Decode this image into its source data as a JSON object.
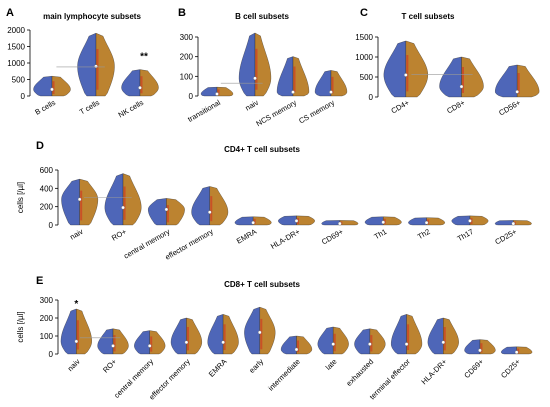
{
  "colors": {
    "left_half": "#3b55b0",
    "right_half": "#b5761a",
    "accent_red": "#d2301f",
    "median_line": "#999999"
  },
  "chart_data": [
    {
      "panel": "A",
      "title": "main lymphocyte subsets",
      "type": "violin",
      "ylabel": "",
      "ylim": [
        0,
        2000
      ],
      "yticks": [
        0,
        500,
        1000,
        1500,
        2000
      ],
      "categories": [
        "B cells",
        "T cells",
        "NK cells"
      ],
      "medians": [
        200,
        900,
        250
      ],
      "top": [
        600,
        1900,
        800
      ],
      "significance": [
        {
          "category": "NK cells",
          "text": "**"
        }
      ],
      "reference_line": 880
    },
    {
      "panel": "B",
      "title": "B cell subsets",
      "type": "violin",
      "ylabel": "",
      "ylim": [
        0,
        300
      ],
      "yticks": [
        0,
        100,
        200,
        300
      ],
      "categories": [
        "transitional",
        "naiv",
        "NCS memory",
        "CS memory"
      ],
      "medians": [
        10,
        90,
        20,
        20
      ],
      "top": [
        45,
        320,
        200,
        130
      ],
      "significance": [],
      "reference_line": 65
    },
    {
      "panel": "C",
      "title": "T cell subsets",
      "type": "violin",
      "ylabel": "",
      "ylim": [
        0,
        1500
      ],
      "yticks": [
        0,
        500,
        1000,
        1500
      ],
      "categories": [
        "CD4+",
        "CD8+",
        "CD56+"
      ],
      "medians": [
        550,
        260,
        130
      ],
      "top": [
        1400,
        1000,
        800
      ],
      "significance": [],
      "reference_line": 560
    },
    {
      "panel": "D",
      "title": "CD4+ T cell subsets",
      "type": "violin",
      "ylabel": "cells [/µl]",
      "ylim": [
        0,
        600
      ],
      "yticks": [
        0,
        200,
        400,
        600
      ],
      "categories": [
        "naiv",
        "RO+",
        "central memory",
        "effector memory",
        "EMRA",
        "HLA-DR+",
        "CD69+",
        "Th1",
        "Th2",
        "Th17",
        "CD25+"
      ],
      "medians": [
        280,
        190,
        170,
        140,
        25,
        45,
        15,
        30,
        25,
        45,
        15
      ],
      "top": [
        500,
        560,
        290,
        420,
        90,
        100,
        50,
        90,
        80,
        100,
        50
      ],
      "significance": [],
      "reference_line": 300
    },
    {
      "panel": "E",
      "title": "CD8+ T cell subsets",
      "type": "violin",
      "ylabel": "cells [/µl]",
      "ylim": [
        0,
        300
      ],
      "yticks": [
        0,
        100,
        200,
        300
      ],
      "categories": [
        "naiv",
        "RO+",
        "central memory",
        "effector memory",
        "EMRA",
        "early",
        "intermediate",
        "late",
        "exhausted",
        "terminal effector",
        "HLA-DR+",
        "CD69+",
        "CD25+"
      ],
      "medians": [
        70,
        45,
        45,
        65,
        65,
        120,
        25,
        55,
        55,
        55,
        65,
        20,
        10
      ],
      "top": [
        250,
        140,
        130,
        200,
        220,
        260,
        100,
        150,
        140,
        220,
        200,
        80,
        40
      ],
      "significance": [
        {
          "category": "naiv",
          "text": "*"
        }
      ],
      "reference_line": 90
    }
  ]
}
